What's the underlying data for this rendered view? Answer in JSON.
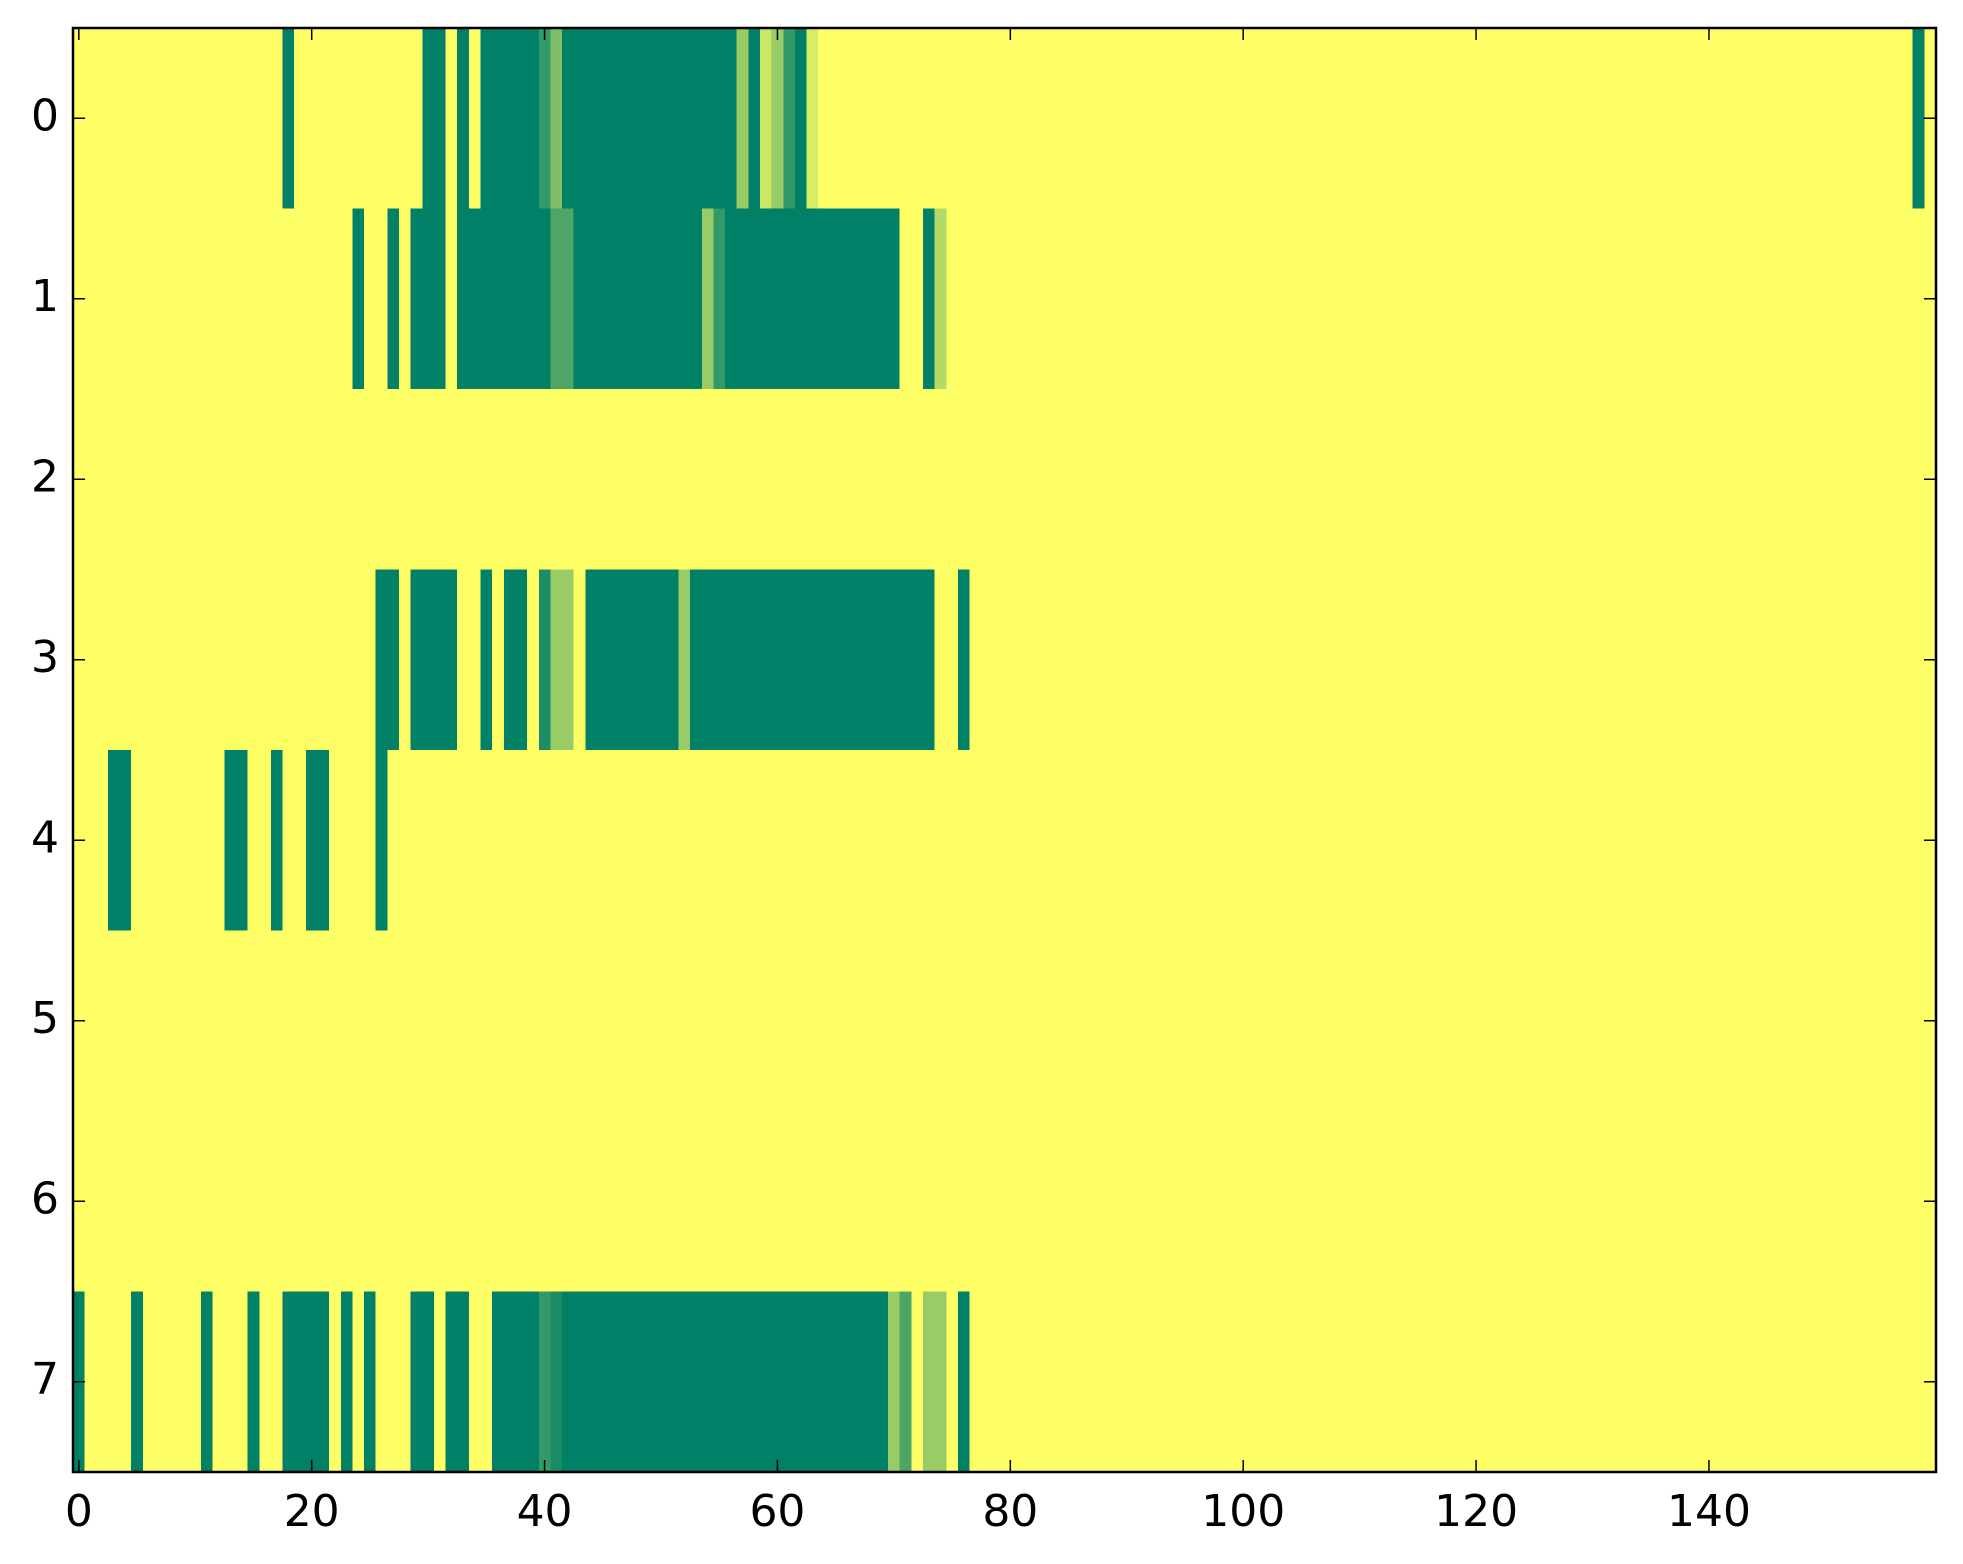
{
  "chart_data": {
    "type": "heatmap",
    "colormap": "summer",
    "vmin": 0,
    "vmax": 1,
    "xlim": [
      -0.5,
      159.5
    ],
    "xticks": [
      0,
      20,
      40,
      60,
      80,
      100,
      120,
      140
    ],
    "ylim": [
      7.5,
      -0.5
    ],
    "yticks": [
      0,
      1,
      2,
      3,
      4,
      5,
      6,
      7
    ],
    "z": [
      [
        1,
        1,
        1,
        1,
        1,
        1,
        1,
        1,
        1,
        1,
        1,
        1,
        1,
        1,
        1,
        1,
        1,
        1,
        0,
        1,
        1,
        1,
        1,
        1,
        1,
        1,
        1,
        1,
        1,
        1,
        0,
        0,
        1,
        0,
        1,
        0,
        0,
        0,
        0,
        0,
        0.2,
        0.5,
        0,
        0,
        0,
        0,
        0,
        0,
        0,
        0,
        0,
        0,
        0,
        0,
        0,
        0,
        0,
        0.6,
        0,
        0.8,
        0.6,
        0.2,
        0,
        0.85,
        1,
        1,
        1,
        1,
        1,
        1,
        1,
        1,
        1,
        1,
        1,
        1,
        1,
        1,
        1,
        1,
        1,
        1,
        1,
        1,
        1,
        1,
        1,
        1,
        1,
        1,
        1,
        1,
        1,
        1,
        1,
        1,
        1,
        1,
        1,
        1,
        1,
        1,
        1,
        1,
        1,
        1,
        1,
        1,
        1,
        1,
        1,
        1,
        1,
        1,
        1,
        1,
        1,
        1,
        1,
        1,
        1,
        1,
        1,
        1,
        1,
        1,
        1,
        1,
        1,
        1,
        1,
        1,
        1,
        1,
        1,
        1,
        1,
        1,
        1,
        1,
        1,
        1,
        1,
        1,
        1,
        1,
        1,
        1,
        1,
        1,
        1,
        1,
        1,
        1,
        1,
        1,
        1,
        1,
        0,
        1
      ],
      [
        1,
        1,
        1,
        1,
        1,
        1,
        1,
        1,
        1,
        1,
        1,
        1,
        1,
        1,
        1,
        1,
        1,
        1,
        1,
        1,
        1,
        1,
        1,
        1,
        0,
        1,
        1,
        0,
        1,
        0,
        0,
        0,
        1,
        0,
        0,
        0,
        0,
        0,
        0,
        0,
        0,
        0.3,
        0.3,
        0,
        0,
        0,
        0,
        0,
        0,
        0,
        0,
        0,
        0,
        0,
        0.6,
        0.2,
        0,
        0,
        0,
        0,
        0,
        0,
        0,
        0,
        0,
        0,
        0,
        0,
        0,
        0,
        0,
        1,
        1,
        0,
        0.7,
        1,
        1,
        1,
        1,
        1,
        1,
        1,
        1,
        1,
        1,
        1,
        1,
        1,
        1,
        1,
        1,
        1,
        1,
        1,
        1,
        1,
        1,
        1,
        1,
        1,
        1,
        1,
        1,
        1,
        1,
        1,
        1,
        1,
        1,
        1,
        1,
        1,
        1,
        1,
        1,
        1,
        1,
        1,
        1,
        1,
        1,
        1,
        1,
        1,
        1,
        1,
        1,
        1,
        1,
        1,
        1,
        1,
        1,
        1,
        1,
        1,
        1,
        1,
        1,
        1,
        1,
        1,
        1,
        1,
        1,
        1,
        1,
        1,
        1,
        1,
        1,
        1,
        1,
        1,
        1,
        1,
        1,
        1,
        1,
        1
      ],
      [
        1,
        1,
        1,
        1,
        1,
        1,
        1,
        1,
        1,
        1,
        1,
        1,
        1,
        1,
        1,
        1,
        1,
        1,
        1,
        1,
        1,
        1,
        1,
        1,
        1,
        1,
        1,
        1,
        1,
        1,
        1,
        1,
        1,
        1,
        1,
        1,
        1,
        1,
        1,
        1,
        1,
        1,
        1,
        1,
        1,
        1,
        1,
        1,
        1,
        1,
        1,
        1,
        1,
        1,
        1,
        1,
        1,
        1,
        1,
        1,
        1,
        1,
        1,
        1,
        1,
        1,
        1,
        1,
        1,
        1,
        1,
        1,
        1,
        1,
        1,
        1,
        1,
        1,
        1,
        1,
        1,
        1,
        1,
        1,
        1,
        1,
        1,
        1,
        1,
        1,
        1,
        1,
        1,
        1,
        1,
        1,
        1,
        1,
        1,
        1,
        1,
        1,
        1,
        1,
        1,
        1,
        1,
        1,
        1,
        1,
        1,
        1,
        1,
        1,
        1,
        1,
        1,
        1,
        1,
        1,
        1,
        1,
        1,
        1,
        1,
        1,
        1,
        1,
        1,
        1,
        1,
        1,
        1,
        1,
        1,
        1,
        1,
        1,
        1,
        1,
        1,
        1,
        1,
        1,
        1,
        1,
        1,
        1,
        1,
        1,
        1,
        1,
        1,
        1,
        1,
        1,
        1,
        1,
        1,
        1
      ],
      [
        1,
        1,
        1,
        1,
        1,
        1,
        1,
        1,
        1,
        1,
        1,
        1,
        1,
        1,
        1,
        1,
        1,
        1,
        1,
        1,
        1,
        1,
        1,
        1,
        1,
        1,
        0,
        0,
        1,
        0,
        0,
        0,
        0,
        1,
        1,
        0,
        1,
        0,
        0,
        1,
        0.1,
        0.6,
        0.6,
        1,
        0,
        0,
        0,
        0,
        0,
        0,
        0,
        0,
        0.6,
        0,
        0,
        0,
        0,
        0,
        0,
        0,
        0,
        0,
        0,
        0,
        0,
        0,
        0,
        0,
        0,
        0,
        0,
        0,
        0,
        0,
        1,
        1,
        0,
        1,
        1,
        1,
        1,
        1,
        1,
        1,
        1,
        1,
        1,
        1,
        1,
        1,
        1,
        1,
        1,
        1,
        1,
        1,
        1,
        1,
        1,
        1,
        1,
        1,
        1,
        1,
        1,
        1,
        1,
        1,
        1,
        1,
        1,
        1,
        1,
        1,
        1,
        1,
        1,
        1,
        1,
        1,
        1,
        1,
        1,
        1,
        1,
        1,
        1,
        1,
        1,
        1,
        1,
        1,
        1,
        1,
        1,
        1,
        1,
        1,
        1,
        1,
        1,
        1,
        1,
        1,
        1,
        1,
        1,
        1,
        1,
        1,
        1,
        1,
        1,
        1,
        1,
        1,
        1,
        1,
        1,
        1
      ],
      [
        1,
        1,
        1,
        0,
        0,
        1,
        1,
        1,
        1,
        1,
        1,
        1,
        1,
        0,
        0,
        1,
        1,
        0,
        1,
        1,
        0,
        0,
        1,
        1,
        1,
        1,
        0,
        1,
        1,
        1,
        1,
        1,
        1,
        1,
        1,
        1,
        1,
        1,
        1,
        1,
        1,
        1,
        1,
        1,
        1,
        1,
        1,
        1,
        1,
        1,
        1,
        1,
        1,
        1,
        1,
        1,
        1,
        1,
        1,
        1,
        1,
        1,
        1,
        1,
        1,
        1,
        1,
        1,
        1,
        1,
        1,
        1,
        1,
        1,
        1,
        1,
        1,
        1,
        1,
        1,
        1,
        1,
        1,
        1,
        1,
        1,
        1,
        1,
        1,
        1,
        1,
        1,
        1,
        1,
        1,
        1,
        1,
        1,
        1,
        1,
        1,
        1,
        1,
        1,
        1,
        1,
        1,
        1,
        1,
        1,
        1,
        1,
        1,
        1,
        1,
        1,
        1,
        1,
        1,
        1,
        1,
        1,
        1,
        1,
        1,
        1,
        1,
        1,
        1,
        1,
        1,
        1,
        1,
        1,
        1,
        1,
        1,
        1,
        1,
        1,
        1,
        1,
        1,
        1,
        1,
        1,
        1,
        1,
        1,
        1,
        1,
        1,
        1,
        1,
        1,
        1,
        1,
        1,
        1,
        1
      ],
      [
        1,
        1,
        1,
        1,
        1,
        1,
        1,
        1,
        1,
        1,
        1,
        1,
        1,
        1,
        1,
        1,
        1,
        1,
        1,
        1,
        1,
        1,
        1,
        1,
        1,
        1,
        1,
        1,
        1,
        1,
        1,
        1,
        1,
        1,
        1,
        1,
        1,
        1,
        1,
        1,
        1,
        1,
        1,
        1,
        1,
        1,
        1,
        1,
        1,
        1,
        1,
        1,
        1,
        1,
        1,
        1,
        1,
        1,
        1,
        1,
        1,
        1,
        1,
        1,
        1,
        1,
        1,
        1,
        1,
        1,
        1,
        1,
        1,
        1,
        1,
        1,
        1,
        1,
        1,
        1,
        1,
        1,
        1,
        1,
        1,
        1,
        1,
        1,
        1,
        1,
        1,
        1,
        1,
        1,
        1,
        1,
        1,
        1,
        1,
        1,
        1,
        1,
        1,
        1,
        1,
        1,
        1,
        1,
        1,
        1,
        1,
        1,
        1,
        1,
        1,
        1,
        1,
        1,
        1,
        1,
        1,
        1,
        1,
        1,
        1,
        1,
        1,
        1,
        1,
        1,
        1,
        1,
        1,
        1,
        1,
        1,
        1,
        1,
        1,
        1,
        1,
        1,
        1,
        1,
        1,
        1,
        1,
        1,
        1,
        1,
        1,
        1,
        1,
        1,
        1,
        1,
        1,
        1,
        1,
        1
      ],
      [
        1,
        1,
        1,
        1,
        1,
        1,
        1,
        1,
        1,
        1,
        1,
        1,
        1,
        1,
        1,
        1,
        1,
        1,
        1,
        1,
        1,
        1,
        1,
        1,
        1,
        1,
        1,
        1,
        1,
        1,
        1,
        1,
        1,
        1,
        1,
        1,
        1,
        1,
        1,
        1,
        1,
        1,
        1,
        1,
        1,
        1,
        1,
        1,
        1,
        1,
        1,
        1,
        1,
        1,
        1,
        1,
        1,
        1,
        1,
        1,
        1,
        1,
        1,
        1,
        1,
        1,
        1,
        1,
        1,
        1,
        1,
        1,
        1,
        1,
        1,
        1,
        1,
        1,
        1,
        1,
        1,
        1,
        1,
        1,
        1,
        1,
        1,
        1,
        1,
        1,
        1,
        1,
        1,
        1,
        1,
        1,
        1,
        1,
        1,
        1,
        1,
        1,
        1,
        1,
        1,
        1,
        1,
        1,
        1,
        1,
        1,
        1,
        1,
        1,
        1,
        1,
        1,
        1,
        1,
        1,
        1,
        1,
        1,
        1,
        1,
        1,
        1,
        1,
        1,
        1,
        1,
        1,
        1,
        1,
        1,
        1,
        1,
        1,
        1,
        1,
        1,
        1,
        1,
        1,
        1,
        1,
        1,
        1,
        1,
        1,
        1,
        1,
        1,
        1,
        1,
        1,
        1,
        1,
        1,
        1
      ],
      [
        0,
        1,
        1,
        1,
        1,
        0,
        1,
        1,
        1,
        1,
        1,
        0,
        1,
        1,
        1,
        0,
        1,
        1,
        0,
        0,
        0,
        0,
        1,
        0,
        1,
        0,
        1,
        1,
        1,
        0,
        0,
        1,
        0,
        0,
        1,
        1,
        0,
        0,
        0,
        0,
        0.2,
        0.1,
        0,
        0,
        0,
        0,
        0,
        0,
        0,
        0,
        0,
        0,
        0,
        0,
        0,
        0,
        0,
        0,
        0,
        0,
        0,
        0,
        0,
        0,
        0,
        0,
        0,
        0,
        0,
        0,
        0.6,
        0.3,
        1,
        0.6,
        0.6,
        1,
        0,
        1,
        1,
        1,
        1,
        1,
        1,
        1,
        1,
        1,
        1,
        1,
        1,
        1,
        1,
        1,
        1,
        1,
        1,
        1,
        1,
        1,
        1,
        1,
        1,
        1,
        1,
        1,
        1,
        1,
        1,
        1,
        1,
        1,
        1,
        1,
        1,
        1,
        1,
        1,
        1,
        1,
        1,
        1,
        1,
        1,
        1,
        1,
        1,
        1,
        1,
        1,
        1,
        1,
        1,
        1,
        1,
        1,
        1,
        1,
        1,
        1,
        1,
        1,
        1,
        1,
        1,
        1,
        1,
        1,
        1,
        1,
        1,
        1,
        1,
        1,
        1,
        1,
        1,
        1,
        1,
        1,
        1,
        1
      ]
    ]
  }
}
